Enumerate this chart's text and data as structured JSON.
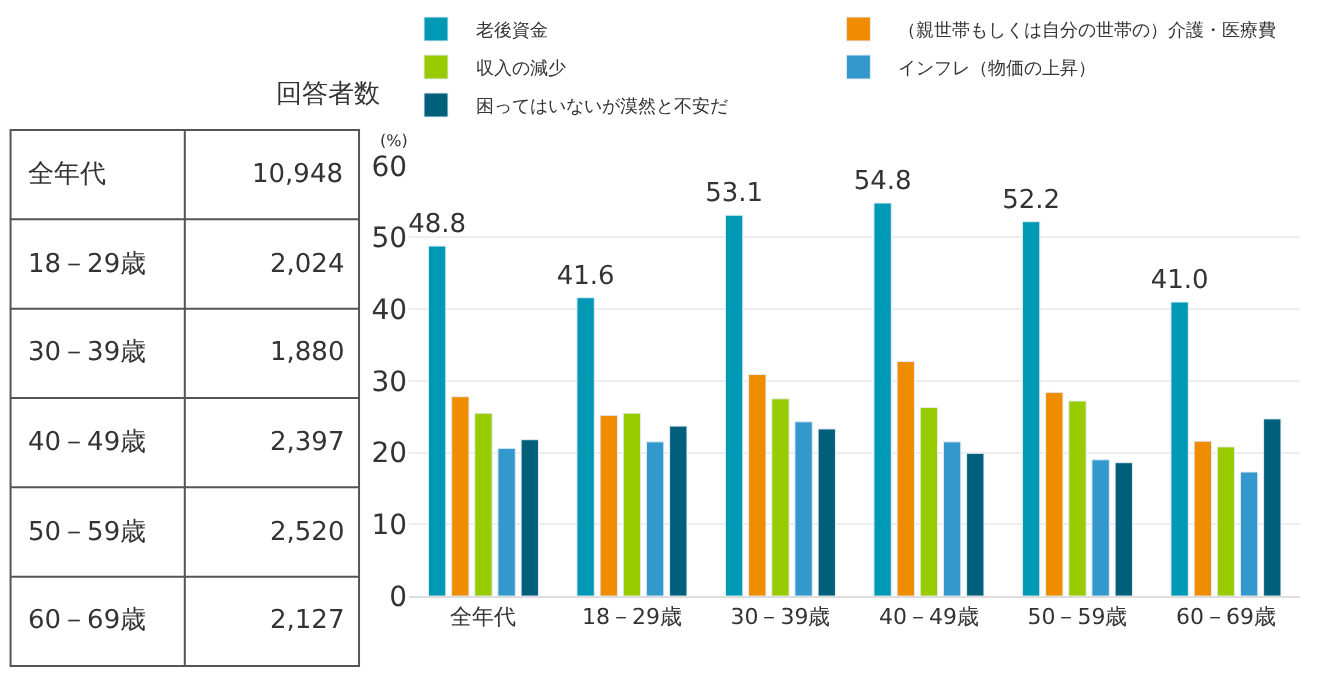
{
  "chart_data": [
    {
      "type": "other",
      "title": "回答者数",
      "categories": [
        "全年代",
        "18－29歳",
        "30－39歳",
        "40－49歳",
        "50－59歳",
        "60－69歳"
      ],
      "annotations": [
        "10,948",
        "2,024",
        "1,880",
        "2,397",
        "2,520",
        "2,127"
      ]
    },
    {
      "type": "bar",
      "ylabel": "(%)",
      "categories": [
        "全年代",
        "18－29歳",
        "30－39歳",
        "40－49歳",
        "50－59歳",
        "60－69歳"
      ],
      "series": [
        {
          "name": "老後資金",
          "color": "#0099b5",
          "values": [
            48.8,
            41.6,
            53.1,
            54.8,
            52.2,
            41.0
          ],
          "value_labels": [
            "48.8",
            "41.6",
            "53.1",
            "54.8",
            "52.2",
            "41.0"
          ]
        },
        {
          "name": "（親世帯もしくは自分の世帯の）介護・医療費",
          "color": "#f08c00",
          "values": [
            27.8,
            25.2,
            30.9,
            32.7,
            28.4,
            21.6
          ]
        },
        {
          "name": "収入の減少",
          "color": "#99cc00",
          "values": [
            25.5,
            25.5,
            27.5,
            26.3,
            27.2,
            20.8
          ]
        },
        {
          "name": "インフレ（物価の上昇）",
          "color": "#3399cc",
          "values": [
            20.6,
            21.5,
            24.3,
            21.5,
            19.0,
            17.3
          ]
        },
        {
          "name": "困ってはいないが漠然と不安だ",
          "color": "#005f7a",
          "values": [
            21.8,
            23.7,
            23.3,
            19.9,
            18.6,
            24.7
          ]
        }
      ],
      "ylim": [
        0,
        60
      ],
      "yticks": [
        0,
        10,
        20,
        30,
        40,
        50,
        60
      ],
      "grid": "y",
      "legend": "top"
    }
  ]
}
